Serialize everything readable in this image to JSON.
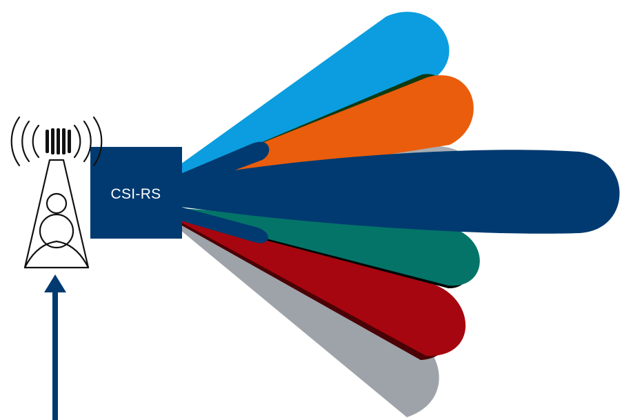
{
  "diagram": {
    "reference_signal_label": "CSI-RS",
    "colors": {
      "beam_light_blue": "#0b9ddf",
      "beam_orange": "#ea5d0c",
      "beam_gray_back": "#a8acb2",
      "beam_main_navy": "#003a70",
      "beam_teal": "#047468",
      "beam_red": "#a6060f",
      "beam_gray_bottom": "#9ea3aa",
      "csi_rs_box": "#003a70",
      "arrow": "#003a70",
      "tower_stroke": "#111111"
    },
    "icons": {
      "tower": "cell-tower-icon",
      "arrow": "up-arrow-icon"
    }
  }
}
